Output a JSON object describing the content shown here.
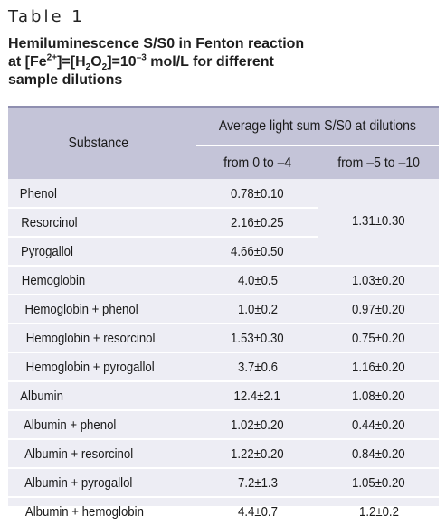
{
  "table_label": "Table 1",
  "caption": {
    "line1": "Hemiluminescence S/S0 in Fenton reaction",
    "at": "at [Fe",
    "fe_sup": "2+",
    "mid": "]=[H",
    "h_sub1": "2",
    "o": "O",
    "h_sub2": "2",
    "eq": "]=10",
    "exp": "–3",
    "tail": " mol/L for different",
    "line3": "sample dilutions"
  },
  "header": {
    "substance": "Substance",
    "average": "Average light sum S/S0 at dilutions",
    "col1": "from 0 to –4",
    "col2": "from –5 to –10"
  },
  "merged_value": "1.31±0.30",
  "rows": [
    {
      "substance": "Phenol",
      "c1": "0.78±0.10",
      "c2": ""
    },
    {
      "substance": "Resorcinol",
      "c1": "2.16±0.25",
      "c2": ""
    },
    {
      "substance": "Pyrogallol",
      "c1": "4.66±0.50",
      "c2": ""
    },
    {
      "substance": "Hemoglobin",
      "c1": "4.0±0.5",
      "c2": "1.03±0.20"
    },
    {
      "substance": "Hemoglobin + phenol",
      "c1": "1.0±0.2",
      "c2": "0.97±0.20"
    },
    {
      "substance": "Hemoglobin + resorcinol",
      "c1": "1.53±0.30",
      "c2": "0.75±0.20"
    },
    {
      "substance": "Hemoglobin + pyrogallol",
      "c1": "3.7±0.6",
      "c2": "1.16±0.20"
    },
    {
      "substance": "Albumin",
      "c1": "12.4±2.1",
      "c2": "1.08±0.20"
    },
    {
      "substance": "Albumin + phenol",
      "c1": "1.02±0.20",
      "c2": "0.44±0.20"
    },
    {
      "substance": "Albumin + resorcinol",
      "c1": "1.22±0.20",
      "c2": "0.84±0.20"
    },
    {
      "substance": "Albumin + pyrogallol",
      "c1": "7.2±1.3",
      "c2": "1.05±0.20"
    },
    {
      "substance": "Albumin + hemoglobin",
      "c1": "4.4±0.7",
      "c2": "1.2±0.2"
    }
  ],
  "colors": {
    "header_bg": "#c4c4d8",
    "body_bg": "#ededf4",
    "top_rule": "#8f8fb0",
    "separator": "#ffffff"
  }
}
